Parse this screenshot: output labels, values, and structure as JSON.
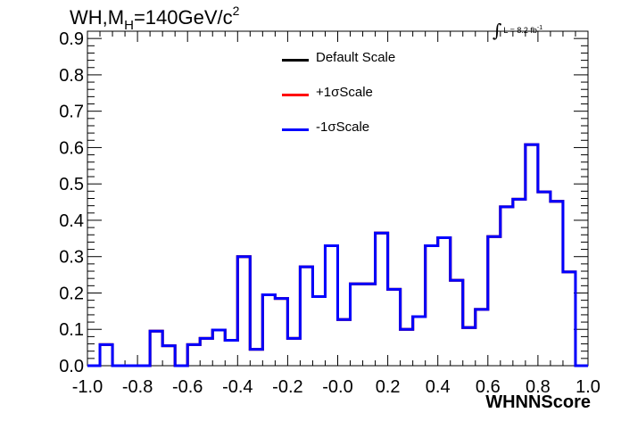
{
  "title": {
    "main": "WH,M",
    "sub": "H",
    "mid": "=140GeV/c",
    "sup": "2"
  },
  "lumi": {
    "integral": "∫",
    "text": "L = 8.2 fb",
    "sup": "-1"
  },
  "legend": {
    "items": [
      {
        "label": "Default Scale",
        "color": "#000000"
      },
      {
        "label": "+1σScale",
        "color": "#ff0000"
      },
      {
        "label": "-1σScale",
        "color": "#0000ff"
      }
    ]
  },
  "chart_data": {
    "type": "line",
    "style": "step-histogram",
    "xlabel": "WHNNScore",
    "ylabel": "",
    "xlim": [
      -1.0,
      1.0
    ],
    "ylim": [
      0.0,
      0.92
    ],
    "x_ticks": [
      "-1.0",
      "-0.8",
      "-0.6",
      "-0.4",
      "-0.2",
      "-0.0",
      "0.2",
      "0.4",
      "0.6",
      "0.8",
      "1.0"
    ],
    "y_ticks": [
      "0.0",
      "0.1",
      "0.2",
      "0.3",
      "0.4",
      "0.5",
      "0.6",
      "0.7",
      "0.8",
      "0.9"
    ],
    "bin_edges": [
      -1.0,
      -0.95,
      -0.9,
      -0.85,
      -0.8,
      -0.75,
      -0.7,
      -0.65,
      -0.6,
      -0.55,
      -0.5,
      -0.45,
      -0.4,
      -0.35,
      -0.3,
      -0.25,
      -0.2,
      -0.15,
      -0.1,
      -0.05,
      0.0,
      0.05,
      0.1,
      0.15,
      0.2,
      0.25,
      0.3,
      0.35,
      0.4,
      0.45,
      0.5,
      0.55,
      0.6,
      0.65,
      0.7,
      0.75,
      0.8,
      0.85,
      0.9,
      0.95,
      1.0
    ],
    "series": [
      {
        "name": "Default Scale",
        "color": "#000000",
        "values": [
          0.0,
          0.058,
          0.0,
          0.0,
          0.0,
          0.095,
          0.055,
          0.0,
          0.058,
          0.075,
          0.098,
          0.07,
          0.3,
          0.045,
          0.195,
          0.185,
          0.075,
          0.272,
          0.19,
          0.33,
          0.127,
          0.225,
          0.225,
          0.365,
          0.21,
          0.1,
          0.135,
          0.33,
          0.352,
          0.235,
          0.105,
          0.155,
          0.355,
          0.437,
          0.458,
          0.608,
          0.478,
          0.452,
          0.258,
          0.0
        ]
      },
      {
        "name": "+1σScale",
        "color": "#ff0000",
        "values": [
          0.0,
          0.058,
          0.0,
          0.0,
          0.0,
          0.095,
          0.055,
          0.0,
          0.058,
          0.075,
          0.098,
          0.07,
          0.3,
          0.045,
          0.195,
          0.185,
          0.075,
          0.272,
          0.19,
          0.33,
          0.127,
          0.225,
          0.225,
          0.365,
          0.21,
          0.1,
          0.135,
          0.33,
          0.352,
          0.235,
          0.105,
          0.155,
          0.355,
          0.437,
          0.458,
          0.608,
          0.478,
          0.452,
          0.258,
          0.0
        ]
      },
      {
        "name": "-1σScale",
        "color": "#0000ff",
        "values": [
          0.0,
          0.058,
          0.0,
          0.0,
          0.0,
          0.095,
          0.055,
          0.0,
          0.058,
          0.075,
          0.098,
          0.07,
          0.3,
          0.045,
          0.195,
          0.185,
          0.075,
          0.272,
          0.19,
          0.33,
          0.127,
          0.225,
          0.225,
          0.365,
          0.21,
          0.1,
          0.135,
          0.33,
          0.352,
          0.235,
          0.105,
          0.155,
          0.355,
          0.437,
          0.458,
          0.608,
          0.478,
          0.452,
          0.258,
          0.0
        ]
      }
    ]
  }
}
